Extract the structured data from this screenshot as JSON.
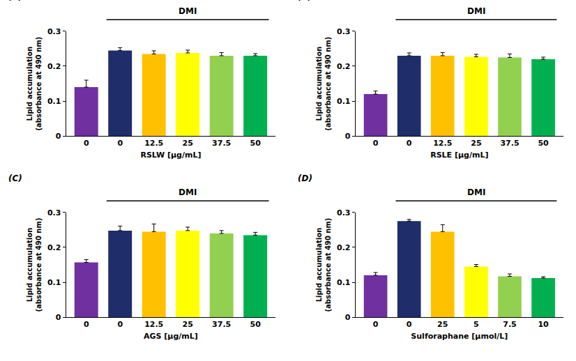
{
  "chart_data": [
    {
      "type": "bar",
      "title": "(A)",
      "annotation": "DMI",
      "x_label": "RSLW [μg/mL]",
      "y_label": "Lipid accumulation\n(absorbance at 490 nm)",
      "categories": [
        "0",
        "0",
        "12.5",
        "25",
        "37.5",
        "50"
      ],
      "values": [
        0.14,
        0.245,
        0.235,
        0.238,
        0.23,
        0.23
      ],
      "error": [
        0.02,
        0.008,
        0.009,
        0.008,
        0.009,
        0.006
      ],
      "colors": [
        "#7030a0",
        "#1f2d6b",
        "#ffc000",
        "#ffff00",
        "#92d050",
        "#00b050"
      ],
      "ylim": [
        0,
        0.3
      ],
      "yticks": [
        0,
        0.1,
        0.2,
        0.3
      ],
      "grid": false
    },
    {
      "type": "bar",
      "title": "(B)",
      "annotation": "DMI",
      "x_label": "RSLE [μg/mL]",
      "y_label": "Lipid accumulation\n(absorbance at 490 nm)",
      "categories": [
        "0",
        "0",
        "12.5",
        "25",
        "37.5",
        "50"
      ],
      "values": [
        0.12,
        0.23,
        0.23,
        0.227,
        0.225,
        0.22
      ],
      "error": [
        0.009,
        0.008,
        0.009,
        0.007,
        0.01,
        0.006
      ],
      "colors": [
        "#7030a0",
        "#1f2d6b",
        "#ffc000",
        "#ffff00",
        "#92d050",
        "#00b050"
      ],
      "ylim": [
        0,
        0.3
      ],
      "yticks": [
        0,
        0.1,
        0.2,
        0.3
      ],
      "grid": false
    },
    {
      "type": "bar",
      "title": "(C)",
      "annotation": "DMI",
      "x_label": "AGS [μg/mL]",
      "y_label": "Lipid accumulation\n(absorbance at 490 nm)",
      "categories": [
        "0",
        "0",
        "12.5",
        "25",
        "37.5",
        "50"
      ],
      "values": [
        0.157,
        0.248,
        0.245,
        0.248,
        0.24,
        0.235
      ],
      "error": [
        0.008,
        0.013,
        0.022,
        0.01,
        0.008,
        0.008
      ],
      "colors": [
        "#7030a0",
        "#1f2d6b",
        "#ffc000",
        "#ffff00",
        "#92d050",
        "#00b050"
      ],
      "ylim": [
        0,
        0.3
      ],
      "yticks": [
        0,
        0.1,
        0.2,
        0.3
      ],
      "grid": false
    },
    {
      "type": "bar",
      "title": "(D)",
      "annotation": "DMI",
      "x_label": "Sulforaphane [μmol/L]",
      "y_label": "Lipid accumulation\n(absorbance at 490 nm)",
      "categories": [
        "0",
        "0",
        "25",
        "5",
        "7.5",
        "10"
      ],
      "values": [
        0.12,
        0.275,
        0.245,
        0.145,
        0.117,
        0.112
      ],
      "error": [
        0.008,
        0.005,
        0.02,
        0.006,
        0.007,
        0.004
      ],
      "colors": [
        "#7030a0",
        "#1f2d6b",
        "#ffc000",
        "#ffff00",
        "#92d050",
        "#00b050"
      ],
      "ylim": [
        0,
        0.3
      ],
      "yticks": [
        0,
        0.1,
        0.2,
        0.3
      ],
      "grid": false
    }
  ]
}
